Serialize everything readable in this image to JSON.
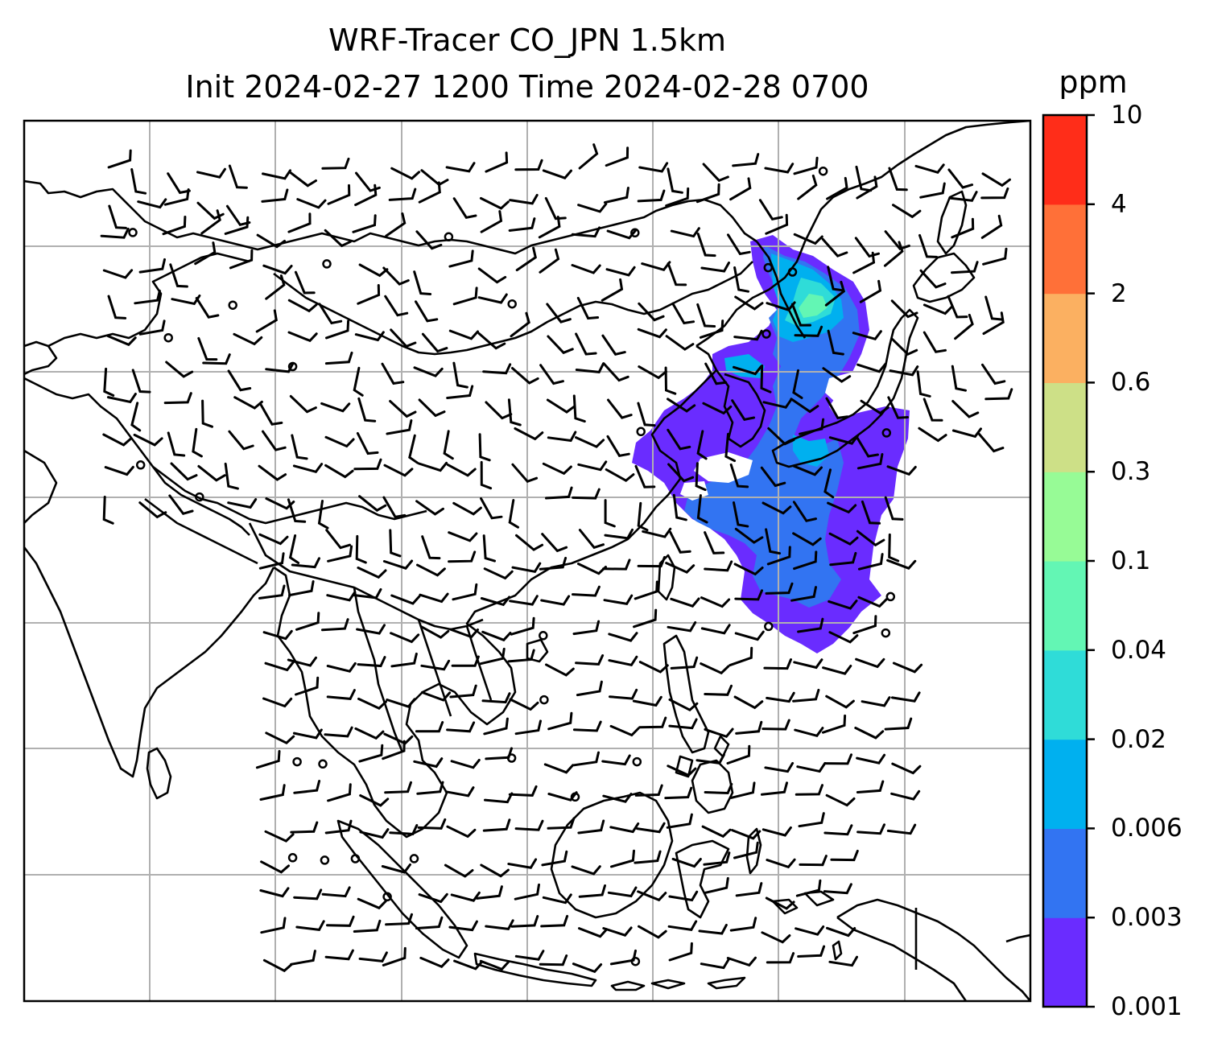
{
  "title": {
    "line1": "WRF-Tracer CO_JPN 1.5km",
    "line2": "Init 2024-02-27 1200 Time 2024-02-28 0700"
  },
  "colorbar": {
    "units": "ppm",
    "ticks": [
      "0.001",
      "0.003",
      "0.006",
      "0.02",
      "0.04",
      "0.1",
      "0.3",
      "0.6",
      "2",
      "4",
      "10"
    ],
    "colors": [
      "#6a2cff",
      "#3274f2",
      "#00b0ef",
      "#2fdcd8",
      "#63f6b4",
      "#97fb96",
      "#cde087",
      "#fbb061",
      "#ff7038",
      "#ff2d19"
    ]
  },
  "map": {
    "region": "East and Southeast Asia",
    "gridlines": true,
    "coastline_color": "#000000",
    "grid_color": "#b0b0b0",
    "tracer_plume_levels": [
      "0.001",
      "0.003",
      "0.006",
      "0.02",
      "0.04"
    ]
  }
}
